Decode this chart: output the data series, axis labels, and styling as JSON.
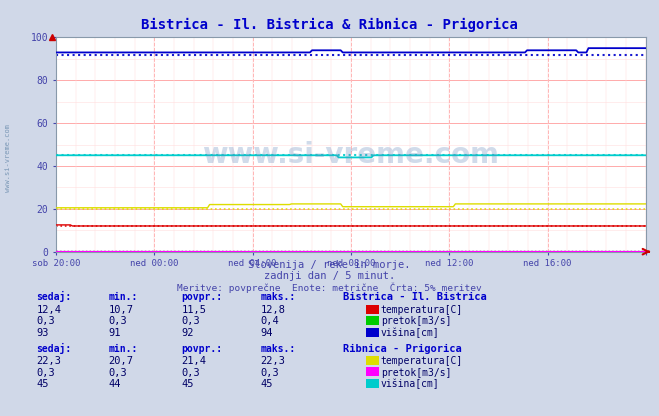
{
  "title": "Bistrica - Il. Bistrica & Ribnica - Prigorica",
  "title_color": "#0000cc",
  "bg_color": "#d0d8e8",
  "plot_bg_color": "#ffffff",
  "xlabel_ticks": [
    "sob 20:00",
    "ned 00:00",
    "ned 04:00",
    "ned 08:00",
    "ned 12:00",
    "ned 16:00"
  ],
  "ylim": [
    0,
    100
  ],
  "yticks": [
    0,
    20,
    40,
    60,
    80,
    100
  ],
  "grid_color_major": "#ffaaaa",
  "grid_color_minor": "#ffdddd",
  "subtitle1": "Slovenija / reke in morje.",
  "subtitle2": "zadnji dan / 5 minut.",
  "subtitle3": "Meritve: povprečne  Enote: metrične  Črta: 5% meritev",
  "subtitle_color": "#4444aa",
  "watermark": "www.si-vreme.com",
  "watermark_color": "#6688bb",
  "left_label_color": "#4444aa",
  "n_points": 289,
  "bistrica_visina_solid": 93,
  "bistrica_visina_dotted": 92,
  "bistrica_temp_solid": 12,
  "bistrica_temp_dotted": 12,
  "bistrica_pretok_solid": 0.3,
  "ribnica_visina_solid": 45,
  "ribnica_visina_dotted": 45,
  "ribnica_temp_solid": 21.4,
  "ribnica_temp_dotted": 20,
  "ribnica_pretok_solid": 0.3,
  "color_bistrica_temp": "#dd0000",
  "color_bistrica_pretok": "#00cc00",
  "color_bistrica_visina": "#0000cc",
  "color_ribnica_temp": "#dddd00",
  "color_ribnica_pretok": "#ff00ff",
  "color_ribnica_visina": "#00cccc",
  "table_header_color": "#0000cc",
  "table_data_color": "#000066",
  "legend_label_color": "#000066",
  "bistrica_label": "Bistrica - Il. Bistrica",
  "ribnica_label": "Ribnica - Prigorica",
  "bistrica_rows": [
    [
      "12,4",
      "10,7",
      "11,5",
      "12,8"
    ],
    [
      "0,3",
      "0,3",
      "0,3",
      "0,4"
    ],
    [
      "93",
      "91",
      "92",
      "94"
    ]
  ],
  "ribnica_rows": [
    [
      "22,3",
      "20,7",
      "21,4",
      "22,3"
    ],
    [
      "0,3",
      "0,3",
      "0,3",
      "0,3"
    ],
    [
      "45",
      "44",
      "45",
      "45"
    ]
  ],
  "var_labels": [
    "temperatura[C]",
    "pretok[m3/s]",
    "višina[cm]"
  ]
}
